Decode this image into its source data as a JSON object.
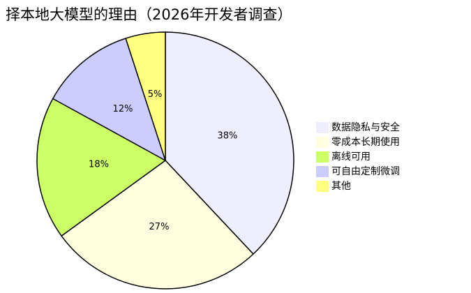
{
  "chart_data": {
    "type": "pie",
    "title": "择本地大模型的理由（2026年开发者调查）",
    "categories": [
      "数据隐私与安全",
      "零成本长期使用",
      "离线可用",
      "可自由定制微调",
      "其他"
    ],
    "values": [
      38,
      27,
      18,
      12,
      5
    ],
    "value_labels": [
      "38%",
      "27%",
      "18%",
      "12%",
      "5%"
    ],
    "colors": [
      "#eeeeff",
      "#ffffe0",
      "#ccff66",
      "#ccccff",
      "#ffff80"
    ],
    "legend": "right"
  }
}
